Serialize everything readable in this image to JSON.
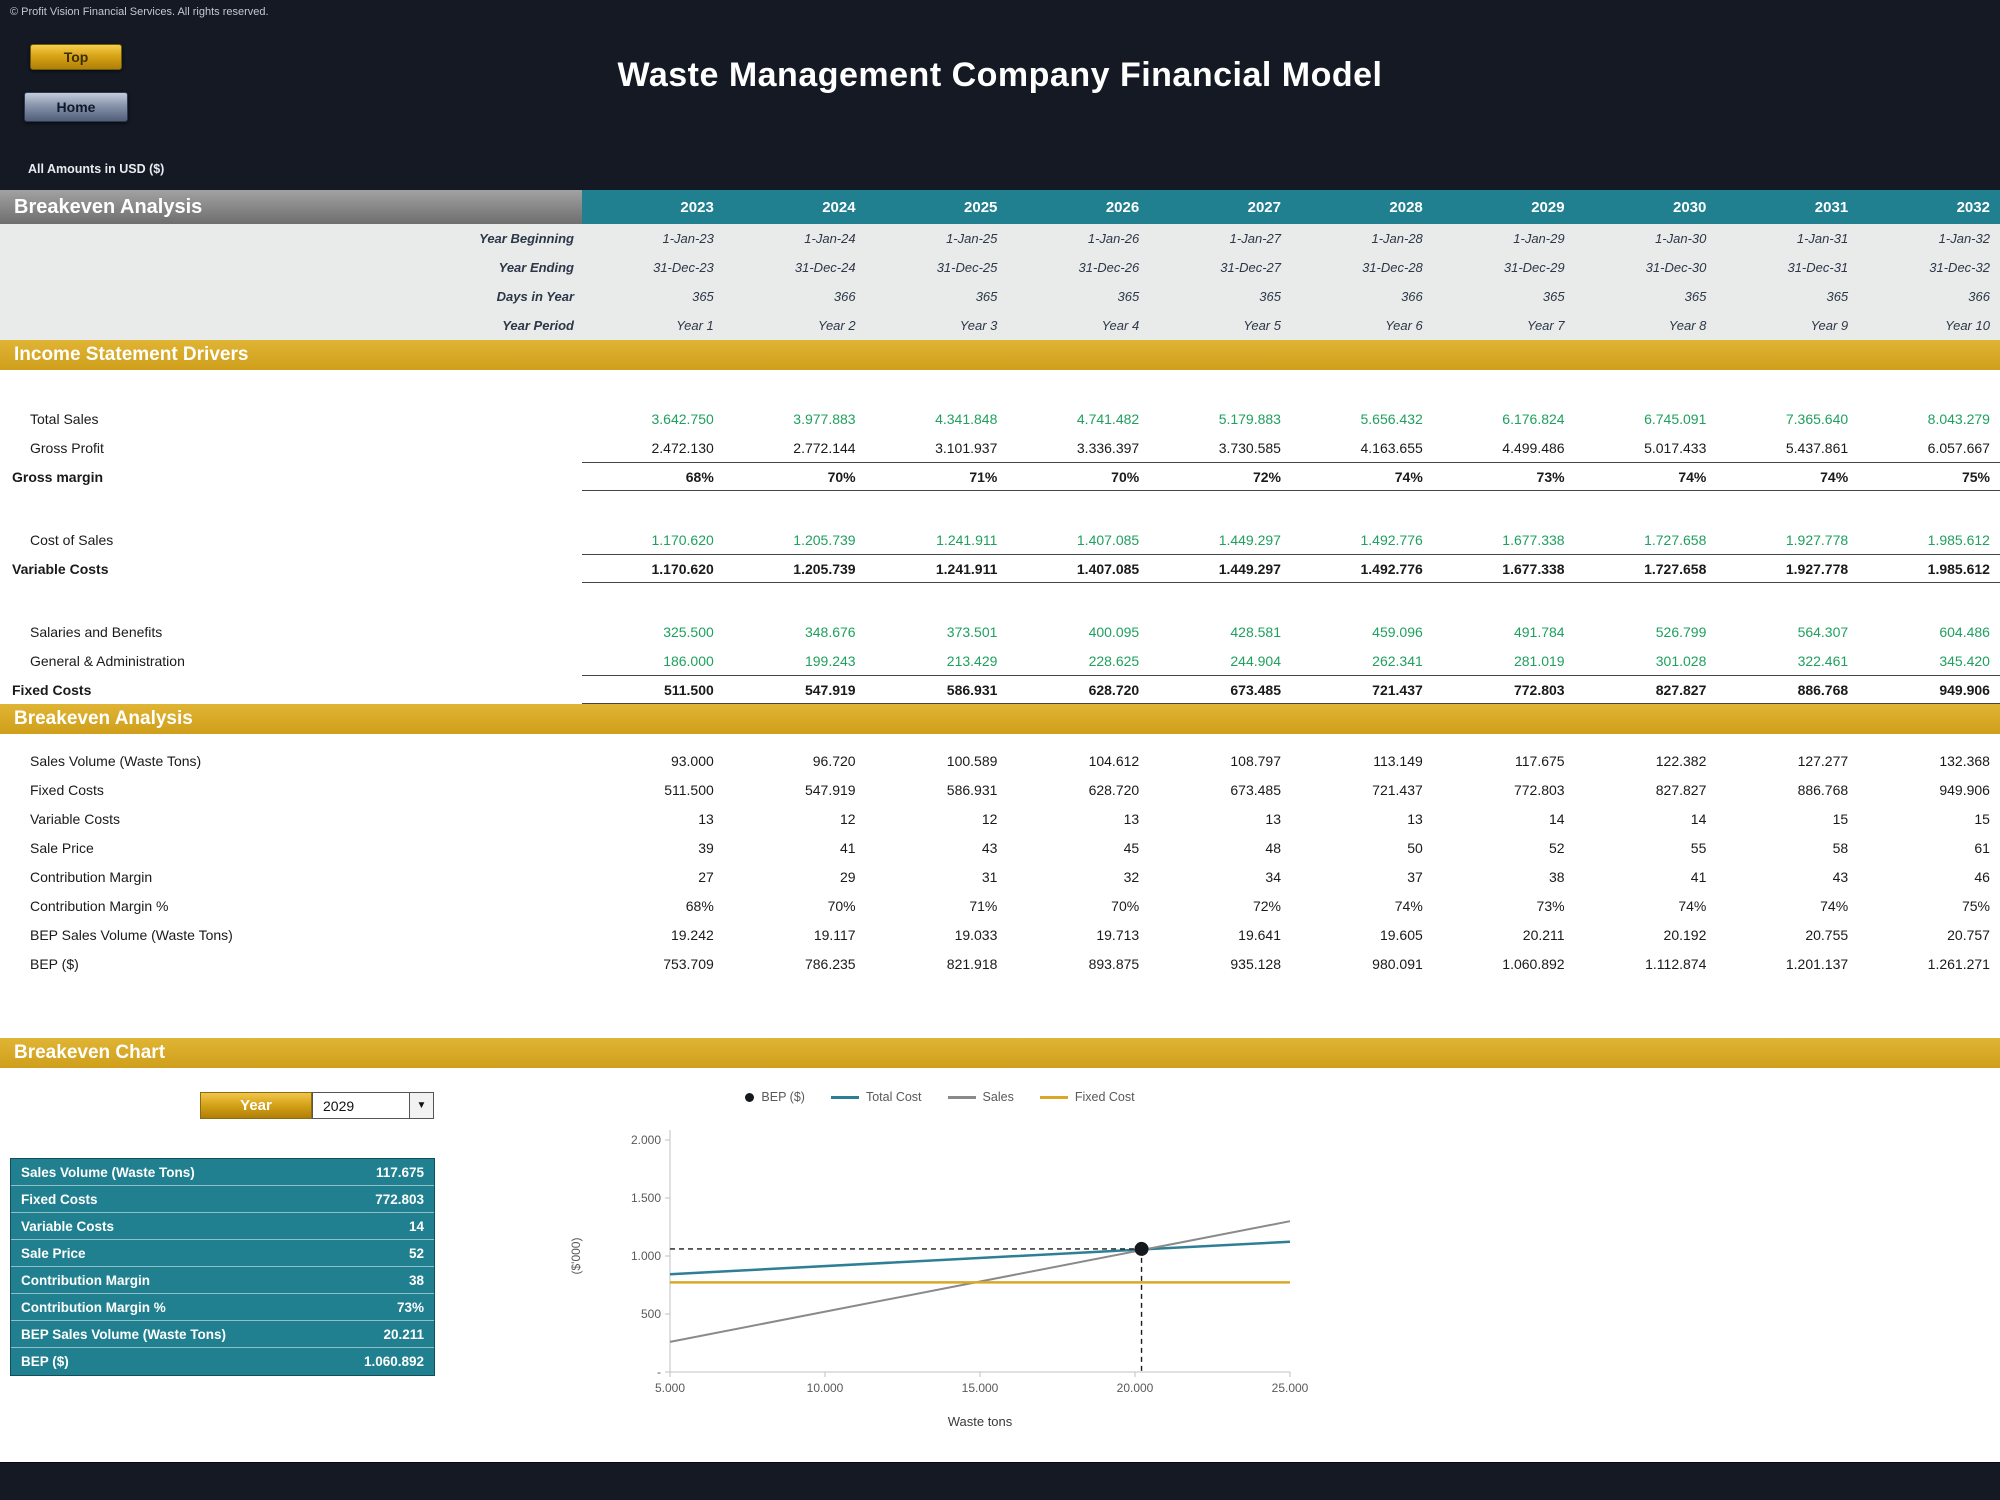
{
  "header": {
    "copyright": "© Profit Vision Financial Services. All rights reserved.",
    "top_button": "Top",
    "home_button": "Home",
    "title": "Waste Management Company Financial Model",
    "amounts_note": "All Amounts in  USD ($)"
  },
  "table": {
    "section_title": "Breakeven Analysis",
    "years": [
      "2023",
      "2024",
      "2025",
      "2026",
      "2027",
      "2028",
      "2029",
      "2030",
      "2031",
      "2032"
    ],
    "meta_rows": [
      {
        "label": "Year Beginning",
        "values": [
          "1-Jan-23",
          "1-Jan-24",
          "1-Jan-25",
          "1-Jan-26",
          "1-Jan-27",
          "1-Jan-28",
          "1-Jan-29",
          "1-Jan-30",
          "1-Jan-31",
          "1-Jan-32"
        ]
      },
      {
        "label": "Year Ending",
        "values": [
          "31-Dec-23",
          "31-Dec-24",
          "31-Dec-25",
          "31-Dec-26",
          "31-Dec-27",
          "31-Dec-28",
          "31-Dec-29",
          "31-Dec-30",
          "31-Dec-31",
          "31-Dec-32"
        ]
      },
      {
        "label": "Days in Year",
        "values": [
          "365",
          "366",
          "365",
          "365",
          "365",
          "366",
          "365",
          "365",
          "365",
          "366"
        ]
      },
      {
        "label": "Year Period",
        "values": [
          "Year 1",
          "Year 2",
          "Year 3",
          "Year 4",
          "Year 5",
          "Year 6",
          "Year 7",
          "Year 8",
          "Year 9",
          "Year 10"
        ]
      }
    ],
    "income_section": {
      "title": "Income Statement Drivers",
      "rows": [
        {
          "type": "spacer"
        },
        {
          "label": "Total Sales",
          "style": "green",
          "values": [
            "3.642.750",
            "3.977.883",
            "4.341.848",
            "4.741.482",
            "5.179.883",
            "5.656.432",
            "6.176.824",
            "6.745.091",
            "7.365.640",
            "8.043.279"
          ]
        },
        {
          "label": "Gross Profit",
          "style": "normal",
          "values": [
            "2.472.130",
            "2.772.144",
            "3.101.937",
            "3.336.397",
            "3.730.585",
            "4.163.655",
            "4.499.486",
            "5.017.433",
            "5.437.861",
            "6.057.667"
          ]
        },
        {
          "label": "Gross margin",
          "style": "total",
          "values": [
            "68%",
            "70%",
            "71%",
            "70%",
            "72%",
            "74%",
            "73%",
            "74%",
            "74%",
            "75%"
          ]
        },
        {
          "type": "spacer"
        },
        {
          "label": "Cost of Sales",
          "style": "green",
          "values": [
            "1.170.620",
            "1.205.739",
            "1.241.911",
            "1.407.085",
            "1.449.297",
            "1.492.776",
            "1.677.338",
            "1.727.658",
            "1.927.778",
            "1.985.612"
          ]
        },
        {
          "label": "Variable Costs",
          "style": "total",
          "values": [
            "1.170.620",
            "1.205.739",
            "1.241.911",
            "1.407.085",
            "1.449.297",
            "1.492.776",
            "1.677.338",
            "1.727.658",
            "1.927.778",
            "1.985.612"
          ]
        },
        {
          "type": "spacer"
        },
        {
          "label": "Salaries and Benefits",
          "style": "green",
          "values": [
            "325.500",
            "348.676",
            "373.501",
            "400.095",
            "428.581",
            "459.096",
            "491.784",
            "526.799",
            "564.307",
            "604.486"
          ]
        },
        {
          "label": "General & Administration",
          "style": "green",
          "values": [
            "186.000",
            "199.243",
            "213.429",
            "228.625",
            "244.904",
            "262.341",
            "281.019",
            "301.028",
            "322.461",
            "345.420"
          ]
        },
        {
          "label": "Fixed Costs",
          "style": "total",
          "values": [
            "511.500",
            "547.919",
            "586.931",
            "628.720",
            "673.485",
            "721.437",
            "772.803",
            "827.827",
            "886.768",
            "949.906"
          ]
        }
      ]
    },
    "breakeven_section": {
      "title": "Breakeven Analysis",
      "rows": [
        {
          "label": "Sales Volume (Waste Tons)",
          "style": "normal",
          "values": [
            "93.000",
            "96.720",
            "100.589",
            "104.612",
            "108.797",
            "113.149",
            "117.675",
            "122.382",
            "127.277",
            "132.368"
          ]
        },
        {
          "label": "Fixed Costs",
          "style": "normal",
          "values": [
            "511.500",
            "547.919",
            "586.931",
            "628.720",
            "673.485",
            "721.437",
            "772.803",
            "827.827",
            "886.768",
            "949.906"
          ]
        },
        {
          "label": "Variable Costs",
          "style": "normal",
          "values": [
            "13",
            "12",
            "12",
            "13",
            "13",
            "13",
            "14",
            "14",
            "15",
            "15"
          ]
        },
        {
          "label": "Sale Price",
          "style": "normal",
          "values": [
            "39",
            "41",
            "43",
            "45",
            "48",
            "50",
            "52",
            "55",
            "58",
            "61"
          ]
        },
        {
          "label": "Contribution Margin",
          "style": "normal",
          "values": [
            "27",
            "29",
            "31",
            "32",
            "34",
            "37",
            "38",
            "41",
            "43",
            "46"
          ]
        },
        {
          "label": "Contribution Margin %",
          "style": "normal",
          "values": [
            "68%",
            "70%",
            "71%",
            "70%",
            "72%",
            "74%",
            "73%",
            "74%",
            "74%",
            "75%"
          ]
        },
        {
          "label": "BEP Sales Volume (Waste Tons)",
          "style": "normal",
          "values": [
            "19.242",
            "19.117",
            "19.033",
            "19.713",
            "19.641",
            "19.605",
            "20.211",
            "20.192",
            "20.755",
            "20.757"
          ]
        },
        {
          "label": "BEP ($)",
          "style": "normal",
          "values": [
            "753.709",
            "786.235",
            "821.918",
            "893.875",
            "935.128",
            "980.091",
            "1.060.892",
            "1.112.874",
            "1.201.137",
            "1.261.271"
          ]
        }
      ]
    }
  },
  "chart_section": {
    "title": "Breakeven Chart",
    "year_label": "Year",
    "year_value": "2029",
    "dropdown_icon": "▼",
    "panel_rows": [
      {
        "label": "Sales Volume (Waste Tons)",
        "value": "117.675"
      },
      {
        "label": "Fixed Costs",
        "value": "772.803"
      },
      {
        "label": "Variable Costs",
        "value": "14"
      },
      {
        "label": "Sale Price",
        "value": "52"
      },
      {
        "label": "Contribution Margin",
        "value": "38"
      },
      {
        "label": "Contribution Margin %",
        "value": "73%"
      },
      {
        "label": "BEP Sales Volume (Waste Tons)",
        "value": "20.211"
      },
      {
        "label": "BEP ($)",
        "value": "1.060.892"
      }
    ]
  },
  "chart_data": {
    "type": "line",
    "xlabel": "Waste tons",
    "ylabel": "($'000)",
    "xlim": [
      5000,
      25000
    ],
    "ylim": [
      0,
      2000
    ],
    "x_ticks": [
      {
        "v": 5000,
        "label": "5.000"
      },
      {
        "v": 10000,
        "label": "10.000"
      },
      {
        "v": 15000,
        "label": "15.000"
      },
      {
        "v": 20000,
        "label": "20.000"
      },
      {
        "v": 25000,
        "label": "25.000"
      }
    ],
    "y_ticks": [
      {
        "v": 0,
        "label": "-"
      },
      {
        "v": 500,
        "label": "500"
      },
      {
        "v": 1000,
        "label": "1.000"
      },
      {
        "v": 1500,
        "label": "1.500"
      },
      {
        "v": 2000,
        "label": "2.000"
      }
    ],
    "series": [
      {
        "name": "Total Cost",
        "color": "#2e7f95",
        "width": 2.5,
        "x": [
          5000,
          25000
        ],
        "y": [
          843,
          1123
        ]
      },
      {
        "name": "Sales",
        "color": "#8a8a8a",
        "width": 2,
        "x": [
          5000,
          25000
        ],
        "y": [
          260,
          1300
        ]
      },
      {
        "name": "Fixed Cost",
        "color": "#d9a829",
        "width": 2.5,
        "x": [
          5000,
          25000
        ],
        "y": [
          773,
          773
        ]
      }
    ],
    "bep_point": {
      "label": "BEP ($)",
      "x": 20211,
      "y": 1061,
      "color": "#15181d"
    },
    "legend": [
      {
        "label": "BEP ($)",
        "marker": "dot",
        "color": "#15181d"
      },
      {
        "label": "Total Cost",
        "marker": "line",
        "color": "#2e7f95"
      },
      {
        "label": "Sales",
        "marker": "line",
        "color": "#8a8a8a"
      },
      {
        "label": "Fixed Cost",
        "marker": "line",
        "color": "#d9a829"
      }
    ],
    "legend_position": "top",
    "grid": false
  }
}
